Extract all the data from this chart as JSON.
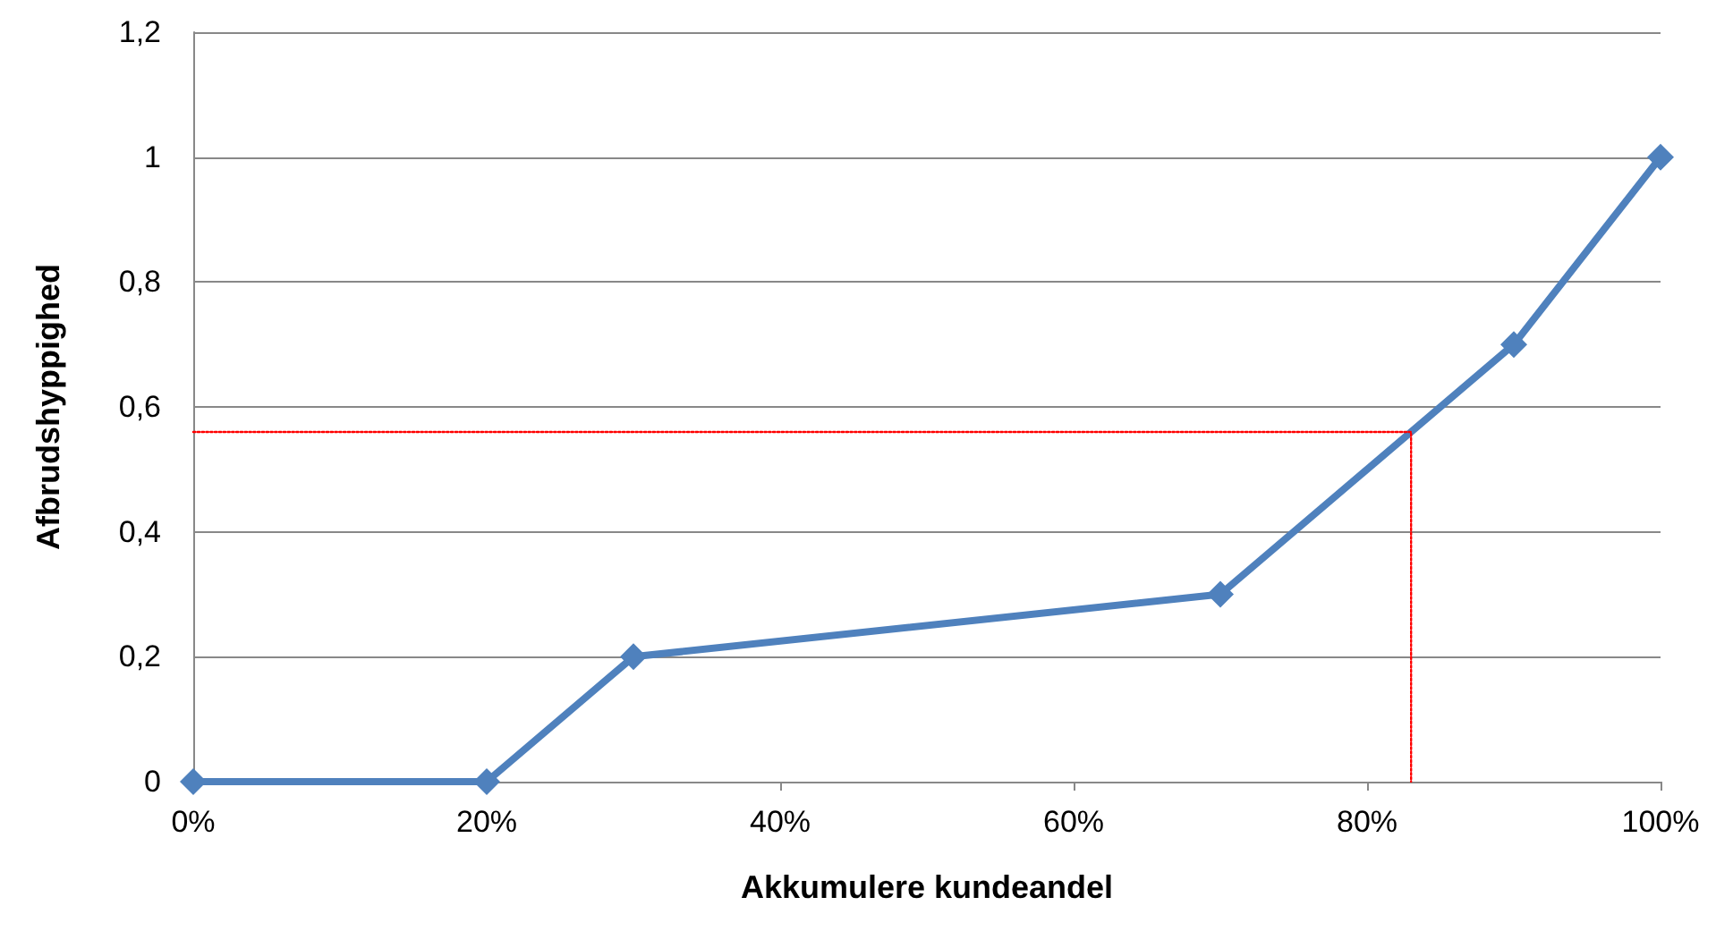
{
  "chart_data": {
    "type": "line",
    "xlabel": "Akkumulere kundeandel",
    "ylabel": "Afbrudshyppighed",
    "xlim": [
      0,
      100
    ],
    "xticks": [
      {
        "value": 0,
        "label": "0%"
      },
      {
        "value": 20,
        "label": "20%"
      },
      {
        "value": 40,
        "label": "40%"
      },
      {
        "value": 60,
        "label": "60%"
      },
      {
        "value": 80,
        "label": "80%"
      },
      {
        "value": 100,
        "label": "100%"
      }
    ],
    "ylim": [
      0,
      1.2
    ],
    "yticks": [
      0,
      {
        "value": 0.2,
        "label": "0,2"
      },
      {
        "value": 0.4,
        "label": "0,4"
      },
      {
        "value": 0.6,
        "label": "0,6"
      },
      {
        "value": 0.8,
        "label": "0,8"
      },
      1,
      {
        "value": 1.2,
        "label": "1,2"
      }
    ],
    "grid": "y",
    "series": [
      {
        "color": "#4f81bd",
        "x": [
          0,
          20,
          30,
          70,
          90,
          100
        ],
        "values": [
          0,
          0,
          0.2,
          0.3,
          0.7,
          1
        ],
        "marker": "diamond",
        "line_style": "solid"
      },
      {
        "color": "#ff0000",
        "x": [
          0,
          83,
          83
        ],
        "values": [
          0.56,
          0.56,
          0
        ],
        "marker": "none",
        "line_style": "dotted"
      }
    ]
  }
}
